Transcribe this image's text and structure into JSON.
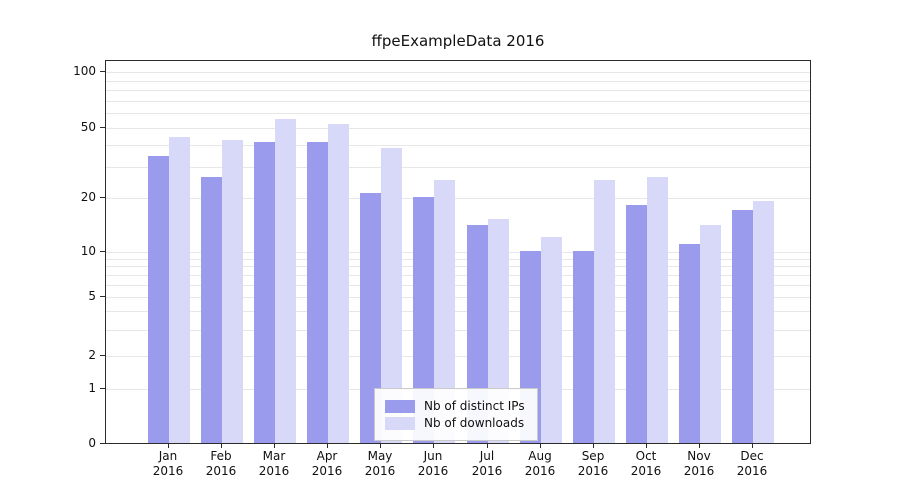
{
  "title": "ffpeExampleData 2016",
  "chart_data": {
    "type": "bar",
    "title": "ffpeExampleData 2016",
    "categories": [
      "Jan",
      "Feb",
      "Mar",
      "Apr",
      "May",
      "Jun",
      "Jul",
      "Aug",
      "Sep",
      "Oct",
      "Nov",
      "Dec"
    ],
    "category_year": "2016",
    "series": [
      {
        "name": "Nb of distinct IPs",
        "color": "#9b9bee",
        "values": [
          34,
          26,
          41,
          41,
          21,
          20,
          14,
          10,
          10,
          18,
          11,
          17
        ]
      },
      {
        "name": "Nb of downloads",
        "color": "#d8d8f8",
        "values": [
          44,
          42,
          55,
          52,
          38,
          25,
          15,
          12,
          25,
          26,
          14,
          19
        ]
      }
    ],
    "yscale": "log",
    "y_tick_labels": [
      "0",
      "1",
      "2",
      "5",
      "10",
      "20",
      "50",
      "100"
    ],
    "y_tick_values": [
      0,
      1,
      2,
      5,
      10,
      20,
      50,
      100
    ],
    "minor_grid_values": [
      1,
      2,
      3,
      4,
      5,
      6,
      7,
      8,
      9,
      10,
      20,
      30,
      40,
      50,
      60,
      70,
      80,
      90,
      100
    ],
    "xlabel": "",
    "ylabel": "",
    "grid": true,
    "legend_position": "bottom-center"
  }
}
